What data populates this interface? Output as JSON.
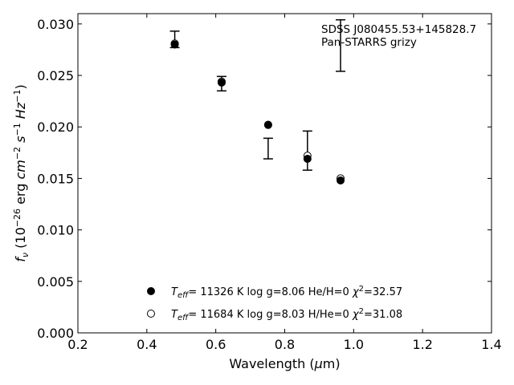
{
  "chart_data": {
    "type": "scatter",
    "xlabel": "Wavelength (μm)",
    "ylabel": "fν (10⁻²⁶ erg cm⁻² s⁻¹ Hz⁻¹)",
    "xlim": [
      0.2,
      1.4
    ],
    "ylim": [
      0.0,
      0.031
    ],
    "x_ticks": [
      "0.2",
      "0.4",
      "0.6",
      "0.8",
      "1.0",
      "1.2",
      "1.4"
    ],
    "x_tick_values": [
      0.2,
      0.4,
      0.6,
      0.8,
      1.0,
      1.2,
      1.4
    ],
    "y_ticks": [
      "0.000",
      "0.005",
      "0.010",
      "0.015",
      "0.020",
      "0.025",
      "0.030"
    ],
    "y_tick_values": [
      0.0,
      0.005,
      0.01,
      0.015,
      0.02,
      0.025,
      0.03
    ],
    "grid": false,
    "annotations": [
      "SDSS J080455.53+145828.7",
      "Pan-STARRS grizy"
    ],
    "observed": {
      "x": [
        0.481,
        0.617,
        0.752,
        0.866,
        0.962
      ],
      "y": [
        0.0285,
        0.0242,
        0.0179,
        0.0177,
        0.0279
      ],
      "yerr": [
        0.0008,
        0.0007,
        0.001,
        0.0019,
        0.0025
      ]
    },
    "series": [
      {
        "name": "Teff= 11326 K  log g=8.06  He/H=0  χ²=32.57",
        "marker": "filled-circle",
        "x": [
          0.481,
          0.617,
          0.752,
          0.866,
          0.962
        ],
        "y": [
          0.028,
          0.0243,
          0.0202,
          0.0169,
          0.0148
        ]
      },
      {
        "name": "Teff= 11684 K  log g=8.03  H/He=0  χ²=31.08",
        "marker": "open-circle",
        "x": [
          0.481,
          0.617,
          0.752,
          0.866,
          0.962
        ],
        "y": [
          0.0281,
          0.0244,
          0.0202,
          0.0172,
          0.015
        ]
      }
    ],
    "legend": [
      {
        "marker": "filled-circle",
        "teff": "11326 K",
        "logg": "log g=8.06",
        "comp": "He/H=0",
        "chi": "=32.57"
      },
      {
        "marker": "open-circle",
        "teff": "11684 K",
        "logg": "log g=8.03",
        "comp": "H/He=0",
        "chi": "=31.08"
      }
    ]
  }
}
